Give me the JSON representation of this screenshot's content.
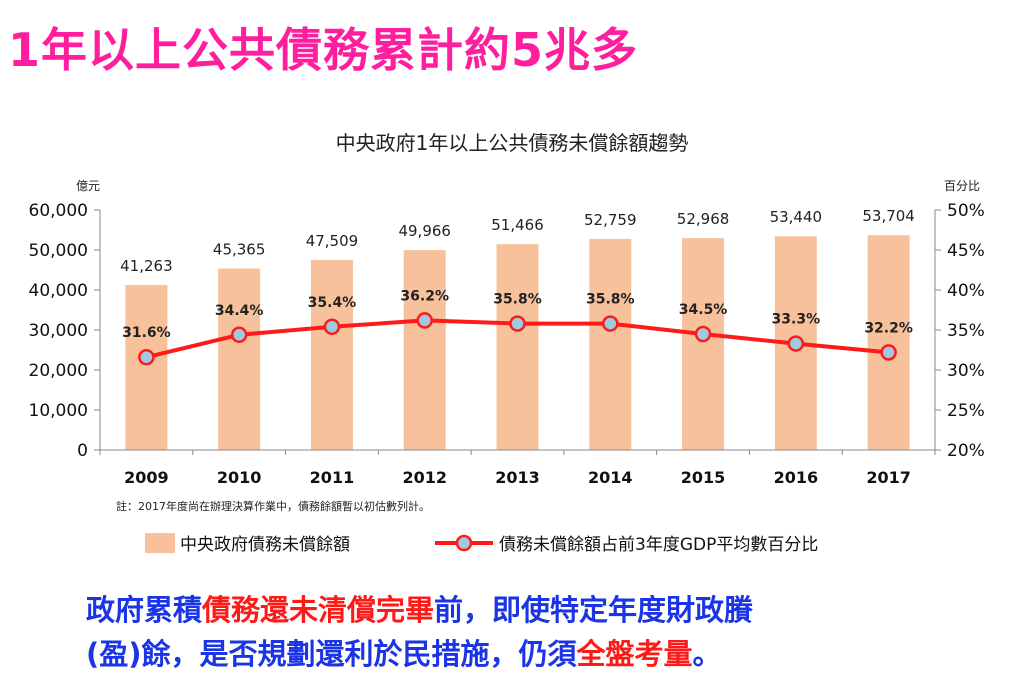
{
  "headline": "1年以上公共債務累計約5兆多",
  "chart_data": {
    "type": "bar+line",
    "title": "中央政府1年以上公共債務未償餘額趨勢",
    "left_unit": "億元",
    "right_unit": "百分比",
    "categories": [
      "2009",
      "2010",
      "2011",
      "2012",
      "2013",
      "2014",
      "2015",
      "2016",
      "2017"
    ],
    "series": [
      {
        "name": "中央政府債務未償餘額",
        "type": "bar",
        "axis": "left",
        "values": [
          41263,
          45365,
          47509,
          49966,
          51466,
          52759,
          52968,
          53440,
          53704
        ],
        "labels": [
          "41,263",
          "45,365",
          "47,509",
          "49,966",
          "51,466",
          "52,759",
          "52,968",
          "53,440",
          "53,704"
        ],
        "color": "#f7c29b"
      },
      {
        "name": "債務未償餘額占前3年度GDP平均數百分比",
        "type": "line",
        "axis": "right",
        "values": [
          31.6,
          34.4,
          35.4,
          36.2,
          35.8,
          35.8,
          34.5,
          33.3,
          32.2
        ],
        "labels": [
          "31.6%",
          "34.4%",
          "35.4%",
          "36.2%",
          "35.8%",
          "35.8%",
          "34.5%",
          "33.3%",
          "32.2%"
        ],
        "color": "#ff1a1a",
        "marker_color": "#9ec9de"
      }
    ],
    "left_axis": {
      "range": [
        0,
        60000
      ],
      "ticks": [
        "0",
        "10,000",
        "20,000",
        "30,000",
        "40,000",
        "50,000",
        "60,000"
      ]
    },
    "right_axis": {
      "range": [
        20,
        50
      ],
      "ticks": [
        "20%",
        "25%",
        "30%",
        "35%",
        "40%",
        "45%",
        "50%"
      ]
    },
    "note": "註：2017年度尚在辦理決算作業中，債務餘額暫以初估數列計。"
  },
  "bottom_text": {
    "line1_part1": "政府累積",
    "line1_part2": "債務還未清償完畢",
    "line1_part3": "前，即使特定年度財政賸",
    "line2_part1": "(盈)餘，是否規劃還利於民措施，仍須",
    "line2_part2": "全盤考量",
    "line2_part3": "。"
  }
}
